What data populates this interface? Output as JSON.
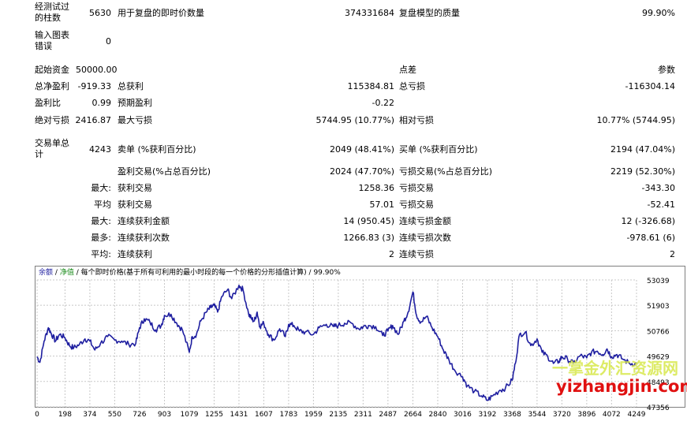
{
  "report": {
    "bars_tested_label": "经测试过\n的柱数",
    "bars_tested": "5630",
    "ticks_label": "用于复盘的即时价数量",
    "ticks": "374331684",
    "quality_label": "复盘模型的质量",
    "quality": "99.90%",
    "mismatch_label": "输入图表\n错误",
    "mismatch": "0",
    "initial_deposit_label": "起始资金",
    "initial_deposit": "50000.00",
    "spread_label": "点差",
    "spread": "参数",
    "net_profit_label": "总净盈利",
    "net_profit": "-919.33",
    "gross_profit_label": "总获利",
    "gross_profit": "115384.81",
    "gross_loss_label": "总亏损",
    "gross_loss": "-116304.14",
    "profit_factor_label": "盈利比",
    "profit_factor": "0.99",
    "expected_payoff_label": "预期盈利",
    "expected_payoff": "-0.22",
    "abs_drawdown_label": "绝对亏损",
    "abs_drawdown": "2416.87",
    "max_drawdown_label": "最大亏损",
    "max_drawdown": "5744.95 (10.77%)",
    "rel_drawdown_label": "相对亏损",
    "rel_drawdown": "10.77% (5744.95)",
    "total_trades_label": "交易单总\n计",
    "total_trades": "4243",
    "short_label": "卖单 (%获利百分比)",
    "short": "2049 (48.41%)",
    "long_label": "买单 (%获利百分比)",
    "long": "2194 (47.04%)",
    "profit_trades_label": "盈利交易(%占总百分比)",
    "profit_trades": "2024 (47.70%)",
    "loss_trades_label": "亏损交易(%占总百分比)",
    "loss_trades": "2219 (52.30%)",
    "largest_prefix": "最大:",
    "largest_profit_label": "获利交易",
    "largest_profit": "1258.36",
    "largest_loss_label": "亏损交易",
    "largest_loss": "-343.30",
    "average_prefix": "平均",
    "average_profit_label": "获利交易",
    "average_profit": "57.01",
    "average_loss_label": "亏损交易",
    "average_loss": "-52.41",
    "max_prefix": "最大:",
    "max_consec_wins_label": "连续获利金额",
    "max_consec_wins": "14 (950.45)",
    "max_consec_losses_label": "连续亏损金额",
    "max_consec_losses": "12 (-326.68)",
    "most_prefix": "最多:",
    "max_consec_profit_label": "连续获利次数",
    "max_consec_profit": "1266.83 (3)",
    "max_consec_loss_label": "连续亏损次数",
    "max_consec_loss": "-978.61 (6)",
    "avg_prefix": "平均:",
    "avg_consec_wins_label": "连续获利",
    "avg_consec_wins": "2",
    "avg_consec_losses_label": "连续亏损",
    "avg_consec_losses": "2"
  },
  "chart_legend": {
    "balance": "余额",
    "sep1": "/",
    "equity": "净值",
    "sep2": "/",
    "model": "每个即时价格(基于所有可利用的最小时段的每一个价格的分形插值计算)",
    "sep3": "/",
    "quality": "99.90%"
  },
  "watermark": {
    "line1": "一掌金外汇资源网",
    "line2": "yizhangjin.com"
  },
  "colors": {
    "line": "#1f1fa0",
    "grid": "#c8c8c8",
    "watermark1": "#d8e84c",
    "watermark2": "#e01010"
  },
  "chart_data": {
    "type": "line",
    "title": "",
    "xlabel": "",
    "ylabel": "",
    "x_ticks": [
      "0",
      "198",
      "374",
      "550",
      "726",
      "903",
      "1079",
      "1255",
      "1431",
      "1607",
      "1783",
      "1959",
      "2135",
      "2311",
      "2487",
      "2664",
      "2840",
      "3016",
      "3192",
      "3368",
      "3544",
      "3720",
      "3896",
      "4072",
      "4249"
    ],
    "y_ticks": [
      "53039",
      "51903",
      "50766",
      "49629",
      "48493",
      "47356"
    ],
    "ylim": [
      47356,
      53039
    ],
    "xlim": [
      0,
      4249
    ],
    "grid": true,
    "series": [
      {
        "x": [
          0,
          20,
          50,
          80,
          100,
          130,
          160,
          198,
          230,
          260,
          300,
          340,
          374,
          410,
          450,
          500,
          550,
          600,
          650,
          700,
          726,
          760,
          800,
          840,
          880,
          903,
          950,
          990,
          1030,
          1079,
          1100,
          1130,
          1160,
          1200,
          1230,
          1255,
          1280,
          1310,
          1350,
          1380,
          1431,
          1460,
          1500,
          1520,
          1540,
          1560,
          1580,
          1607,
          1640,
          1680,
          1720,
          1760,
          1783,
          1820,
          1860,
          1900,
          1959,
          2000,
          2050,
          2100,
          2135,
          2180,
          2230,
          2280,
          2311,
          2350,
          2400,
          2450,
          2487,
          2520,
          2560,
          2600,
          2630,
          2664,
          2690,
          2720,
          2760,
          2800,
          2840,
          2880,
          2920,
          2960,
          3016,
          3050,
          3100,
          3150,
          3192,
          3230,
          3280,
          3320,
          3368,
          3390,
          3420,
          3460,
          3500,
          3544,
          3580,
          3620,
          3660,
          3700,
          3720,
          3760,
          3800,
          3850,
          3896,
          3930,
          3970,
          4010,
          4040,
          4072,
          4110,
          4150,
          4200,
          4249
        ],
        "y": [
          49600,
          49350,
          50300,
          50900,
          50650,
          50300,
          50600,
          50450,
          50100,
          50000,
          50150,
          50400,
          50300,
          49900,
          50200,
          50500,
          50350,
          50300,
          50150,
          50200,
          50900,
          51300,
          51150,
          50800,
          51000,
          51450,
          51500,
          51100,
          50800,
          49800,
          50500,
          50600,
          51200,
          51600,
          51800,
          51900,
          51600,
          52300,
          52600,
          52200,
          52800,
          52600,
          51500,
          51300,
          51200,
          51600,
          50950,
          51100,
          50600,
          50350,
          50850,
          50500,
          51050,
          51000,
          50750,
          50700,
          50600,
          50900,
          51050,
          50950,
          51000,
          51100,
          51100,
          50850,
          50950,
          51000,
          50950,
          50550,
          50750,
          51000,
          50600,
          51200,
          51600,
          52500,
          51450,
          51150,
          51400,
          50900,
          50500,
          49900,
          49450,
          49000,
          48700,
          48300,
          48050,
          47850,
          47650,
          47850,
          48100,
          48200,
          48550,
          49300,
          50600,
          50700,
          50100,
          50400,
          49800,
          49600,
          49300,
          49400,
          49600,
          49500,
          49300,
          49650,
          49550,
          49800,
          49850,
          49700,
          49950,
          49600,
          49700,
          49500,
          49300,
          49300
        ]
      }
    ]
  }
}
